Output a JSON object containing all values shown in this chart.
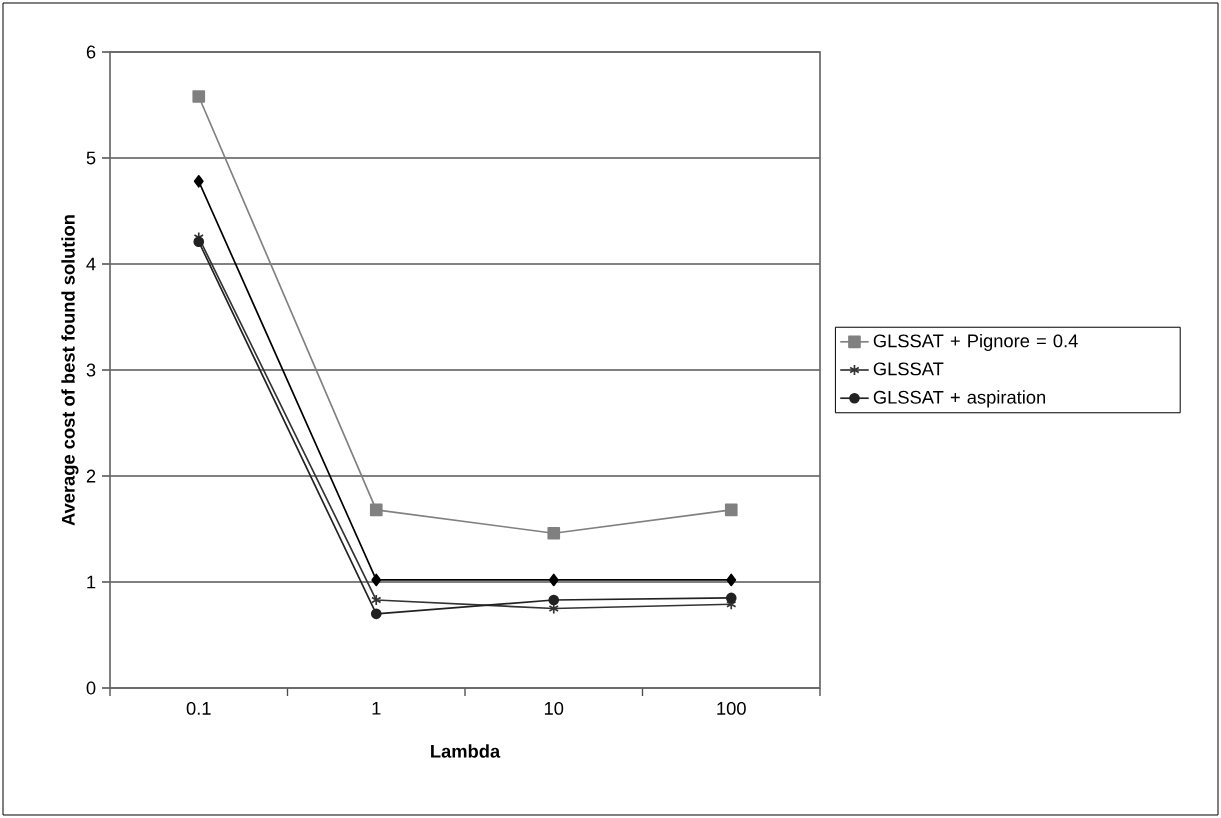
{
  "chart_data": {
    "type": "line",
    "xlabel": "Lambda",
    "ylabel": "Average cost of best found solution",
    "categories": [
      "0.1",
      "1",
      "10",
      "100"
    ],
    "ylim": [
      0,
      6
    ],
    "yticks": [
      0,
      1,
      2,
      3,
      4,
      5,
      6
    ],
    "grid": "y",
    "legend": "right",
    "line_style": "solid",
    "series": [
      {
        "color": "#000000",
        "marker": "diamond",
        "values": [
          4.78,
          1.02,
          1.02,
          1.02
        ]
      },
      {
        "name": "GLSSAT + Pignore = 0.4",
        "color": "#808080",
        "marker": "square",
        "values": [
          5.58,
          1.68,
          1.46,
          1.68
        ]
      },
      {
        "name": "GLSSAT",
        "color": "#333333",
        "marker": "cross",
        "values": [
          4.25,
          0.83,
          0.75,
          0.79
        ]
      },
      {
        "name": "GLSSAT + aspiration",
        "color": "#222222",
        "marker": "circle",
        "values": [
          4.21,
          0.7,
          0.83,
          0.85
        ]
      }
    ]
  }
}
